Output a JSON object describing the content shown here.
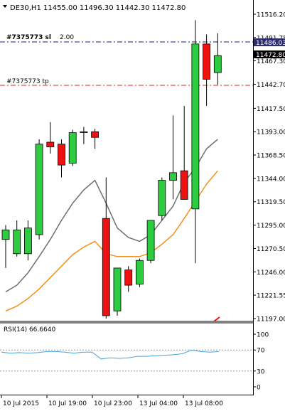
{
  "header": {
    "symbol_line": "DE30,H1  11455.00 11496.30 11442.30 11472.80"
  },
  "trade_lines": {
    "sl_label": "#7375773 sl",
    "sl_price_label": "11486.03",
    "tp_label": "#7375773 tp",
    "order_price_text": "2.00"
  },
  "price_panel": {
    "current_price": "11472.80",
    "price_ticks": [
      "11516.20",
      "11491.75",
      "11467.30",
      "11442.70",
      "11417.50",
      "11393.00",
      "11368.50",
      "11344.00",
      "11319.50",
      "11295.00",
      "11270.50",
      "11246.00",
      "11221.55",
      "11197.00"
    ]
  },
  "rsi_panel": {
    "label": "RSI(14) 66.6640",
    "ticks": [
      "100",
      "70",
      "30",
      "0"
    ],
    "levels": [
      70,
      30
    ],
    "values": [
      66,
      64,
      65,
      64,
      65,
      67,
      67,
      66,
      64,
      66,
      66,
      53,
      55,
      54,
      55,
      58,
      58,
      59,
      60,
      61,
      63,
      70,
      67,
      66,
      67
    ]
  },
  "time_axis": {
    "labels": [
      "10 Jul 2015",
      "10 Jul 19:00",
      "10 Jul 23:00",
      "13 Jul 04:00",
      "13 Jul 08:00"
    ]
  },
  "colors": {
    "bull": "#2ecc40",
    "bear": "#ee1111",
    "ma_fast": "#6e6e6e",
    "ma_slow": "#f39018",
    "rsi": "#4aa3d6",
    "sl_line": "#22226e",
    "tp_line": "#dd2222"
  },
  "chart_data": {
    "type": "candlestick",
    "symbol": "DE30",
    "timeframe": "H1",
    "ylim": [
      11193,
      11525
    ],
    "candles": [
      {
        "o": 11280,
        "h": 11295,
        "l": 11250,
        "c": 11290
      },
      {
        "o": 11265,
        "h": 11300,
        "l": 11262,
        "c": 11290
      },
      {
        "o": 11265,
        "h": 11300,
        "l": 11258,
        "c": 11292
      },
      {
        "o": 11285,
        "h": 11385,
        "l": 11280,
        "c": 11380
      },
      {
        "o": 11382,
        "h": 11403,
        "l": 11370,
        "c": 11377
      },
      {
        "o": 11380,
        "h": 11385,
        "l": 11345,
        "c": 11358
      },
      {
        "o": 11360,
        "h": 11395,
        "l": 11357,
        "c": 11392
      },
      {
        "o": 11392,
        "h": 11398,
        "l": 11380,
        "c": 11393
      },
      {
        "o": 11393,
        "h": 11396,
        "l": 11375,
        "c": 11387
      },
      {
        "o": 11302,
        "h": 11345,
        "l": 11197,
        "c": 11200
      },
      {
        "o": 11205,
        "h": 11250,
        "l": 11200,
        "c": 11250
      },
      {
        "o": 11248,
        "h": 11252,
        "l": 11225,
        "c": 11232
      },
      {
        "o": 11233,
        "h": 11260,
        "l": 11230,
        "c": 11258
      },
      {
        "o": 11258,
        "h": 11300,
        "l": 11255,
        "c": 11300
      },
      {
        "o": 11305,
        "h": 11345,
        "l": 11300,
        "c": 11342
      },
      {
        "o": 11342,
        "h": 11410,
        "l": 11322,
        "c": 11350
      },
      {
        "o": 11352,
        "h": 11420,
        "l": 11325,
        "c": 11322
      },
      {
        "o": 11312,
        "h": 11510,
        "l": 11255,
        "c": 11485
      },
      {
        "o": 11485,
        "h": 11495,
        "l": 11420,
        "c": 11448
      },
      {
        "o": 11455,
        "h": 11496.3,
        "l": 11442.3,
        "c": 11472.8
      }
    ],
    "ma_fast": [
      11225,
      11232,
      11245,
      11262,
      11280,
      11300,
      11318,
      11332,
      11342,
      11318,
      11292,
      11282,
      11278,
      11285,
      11300,
      11315,
      11340,
      11355,
      11375,
      11385
    ],
    "ma_slow": [
      11205,
      11210,
      11218,
      11228,
      11240,
      11252,
      11264,
      11272,
      11278,
      11265,
      11262,
      11262,
      11262,
      11266,
      11275,
      11285,
      11302,
      11320,
      11338,
      11352
    ]
  }
}
